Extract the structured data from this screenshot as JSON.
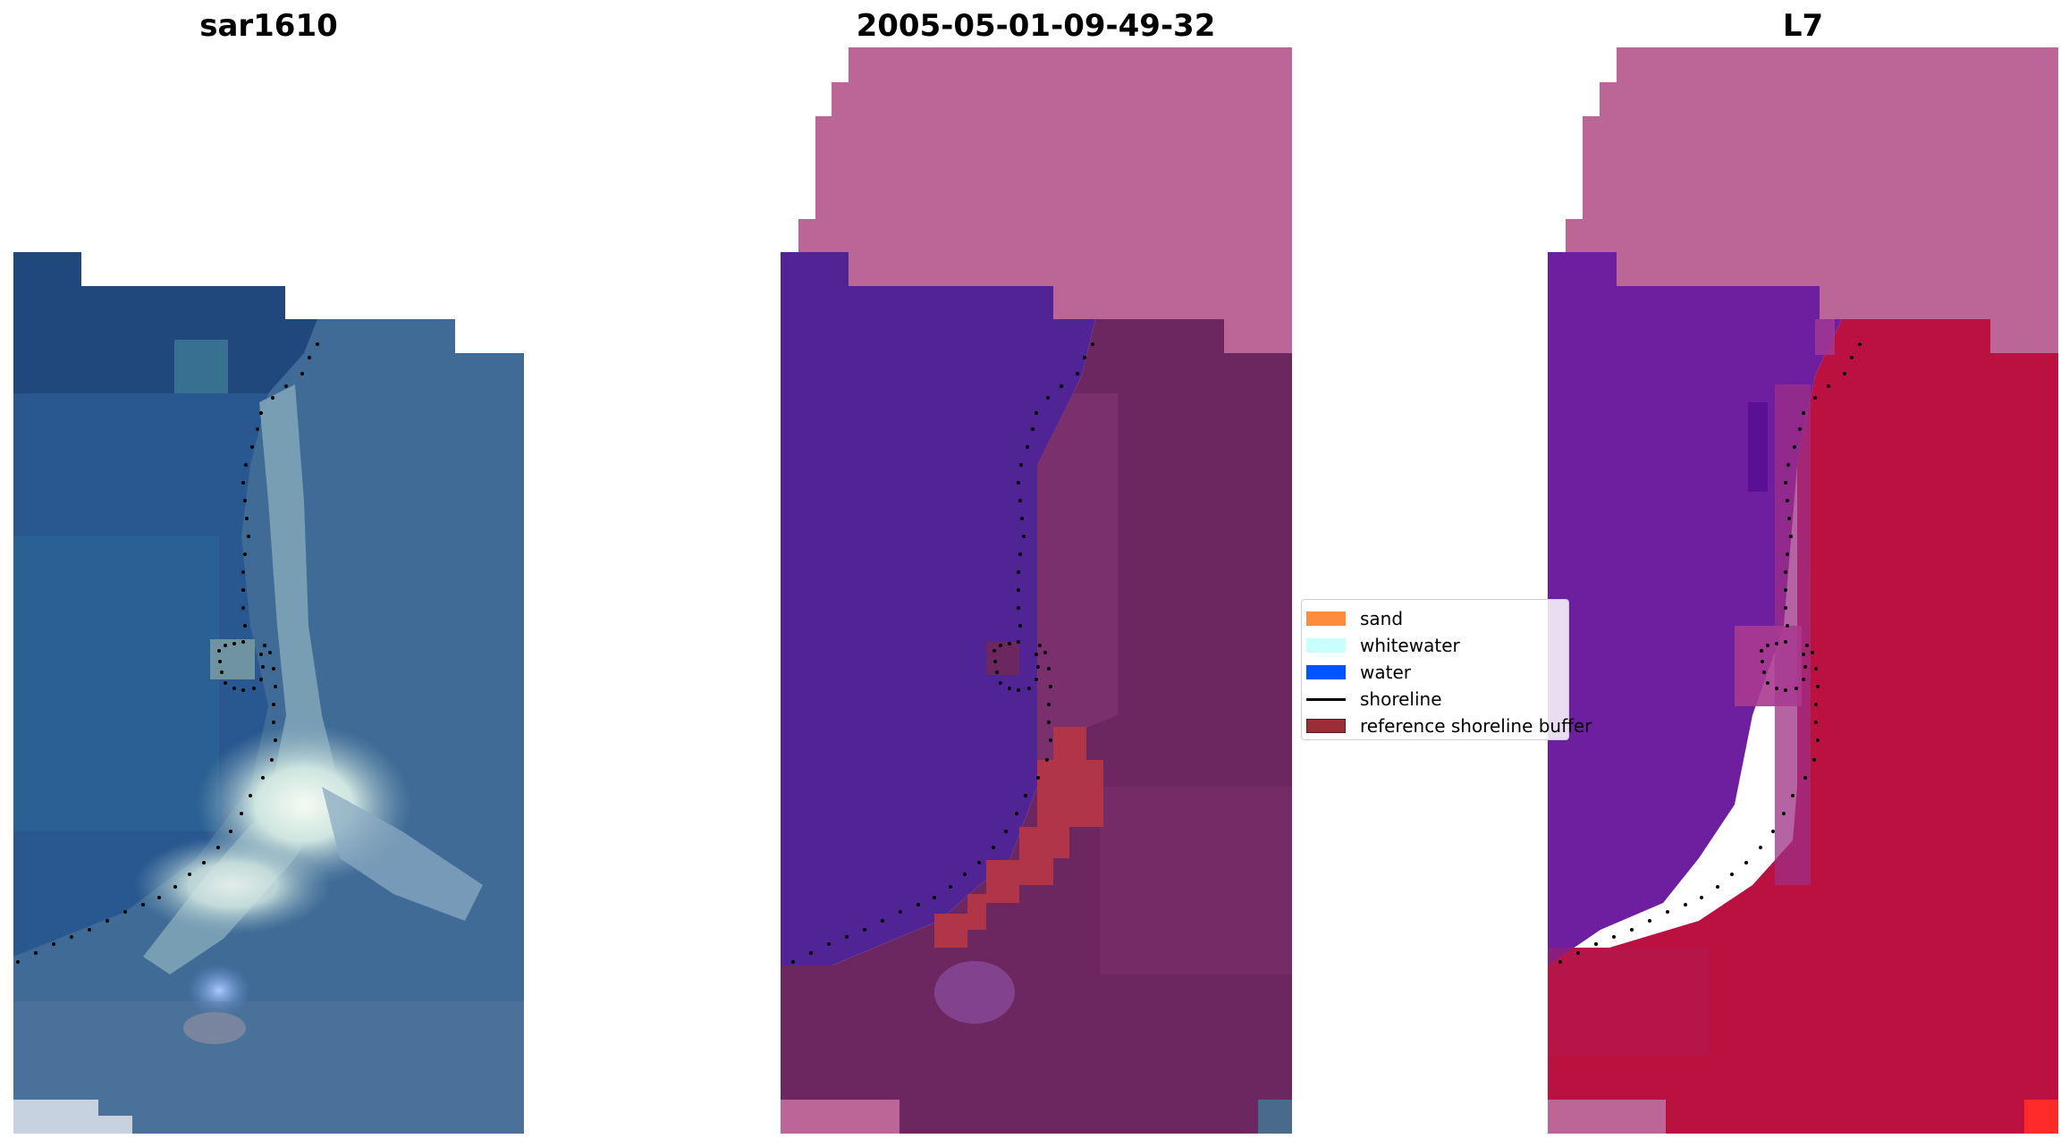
{
  "panels": {
    "left": {
      "title": "sar1610"
    },
    "middle": {
      "title": "2005-05-01-09-49-32"
    },
    "right": {
      "title": "L7"
    }
  },
  "legend": {
    "items": [
      {
        "label": "sand",
        "color": "#ff8c3c",
        "kind": "patch"
      },
      {
        "label": "whitewater",
        "color": "#c8ffff",
        "kind": "patch"
      },
      {
        "label": "water",
        "color": "#0055ff",
        "kind": "patch"
      },
      {
        "label": "shoreline",
        "color": "#000000",
        "kind": "line"
      },
      {
        "label": "reference shoreline buffer",
        "color": "#9a2d36",
        "kind": "patch"
      }
    ]
  },
  "colors": {
    "deep_water": "#21487d",
    "ocean": "#28588f",
    "land": "#3e6a96",
    "masked_area": "#bb6697",
    "water_mask": "#512496",
    "land_composite": "#6c2760",
    "buffer": "#b03548",
    "index_water": "#6e1fa0",
    "index_land": "#bb1140",
    "shoreline_dots": "#000000"
  }
}
